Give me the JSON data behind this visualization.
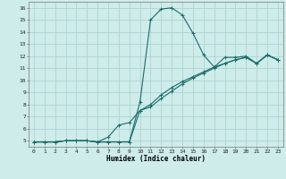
{
  "xlabel": "Humidex (Indice chaleur)",
  "ylabel": "",
  "bg_color": "#ceecea",
  "grid_color": "#aed4d0",
  "line_color": "#1a6b6b",
  "xlim": [
    -0.5,
    23.5
  ],
  "ylim": [
    4.5,
    16.5
  ],
  "xticks": [
    0,
    1,
    2,
    3,
    4,
    5,
    6,
    7,
    8,
    9,
    10,
    11,
    12,
    13,
    14,
    15,
    16,
    17,
    18,
    19,
    20,
    21,
    22,
    23
  ],
  "yticks": [
    5,
    6,
    7,
    8,
    9,
    10,
    11,
    12,
    13,
    14,
    15,
    16
  ],
  "line1_x": [
    0,
    1,
    2,
    3,
    4,
    5,
    6,
    7,
    8,
    9,
    10,
    11,
    12,
    13,
    14,
    15,
    16,
    17,
    18,
    19,
    20,
    21,
    22,
    23
  ],
  "line1_y": [
    4.9,
    4.9,
    4.9,
    5.0,
    5.0,
    5.0,
    4.9,
    4.9,
    4.9,
    4.9,
    8.2,
    15.0,
    15.9,
    16.0,
    15.4,
    13.9,
    12.1,
    11.1,
    11.9,
    11.9,
    12.0,
    11.4,
    12.1,
    11.7
  ],
  "line2_x": [
    0,
    1,
    2,
    3,
    4,
    5,
    6,
    7,
    8,
    9,
    10,
    11,
    12,
    13,
    14,
    15,
    16,
    17,
    18,
    19,
    20,
    21,
    22,
    23
  ],
  "line2_y": [
    4.9,
    4.9,
    4.9,
    5.0,
    5.0,
    5.0,
    4.9,
    5.3,
    6.3,
    6.5,
    7.5,
    8.0,
    8.8,
    9.4,
    9.9,
    10.3,
    10.7,
    11.1,
    11.4,
    11.7,
    11.9,
    11.4,
    12.1,
    11.7
  ],
  "line3_x": [
    0,
    1,
    2,
    3,
    4,
    5,
    6,
    7,
    8,
    9,
    10,
    11,
    12,
    13,
    14,
    15,
    16,
    17,
    18,
    19,
    20,
    21,
    22,
    23
  ],
  "line3_y": [
    4.9,
    4.9,
    4.9,
    5.0,
    5.0,
    5.0,
    4.9,
    4.9,
    4.9,
    4.9,
    7.5,
    7.8,
    8.5,
    9.1,
    9.7,
    10.2,
    10.6,
    11.0,
    11.4,
    11.7,
    11.9,
    11.4,
    12.1,
    11.7
  ],
  "marker": "+",
  "markersize": 3,
  "linewidth": 0.8,
  "tick_fontsize": 4.5,
  "xlabel_fontsize": 5.5
}
